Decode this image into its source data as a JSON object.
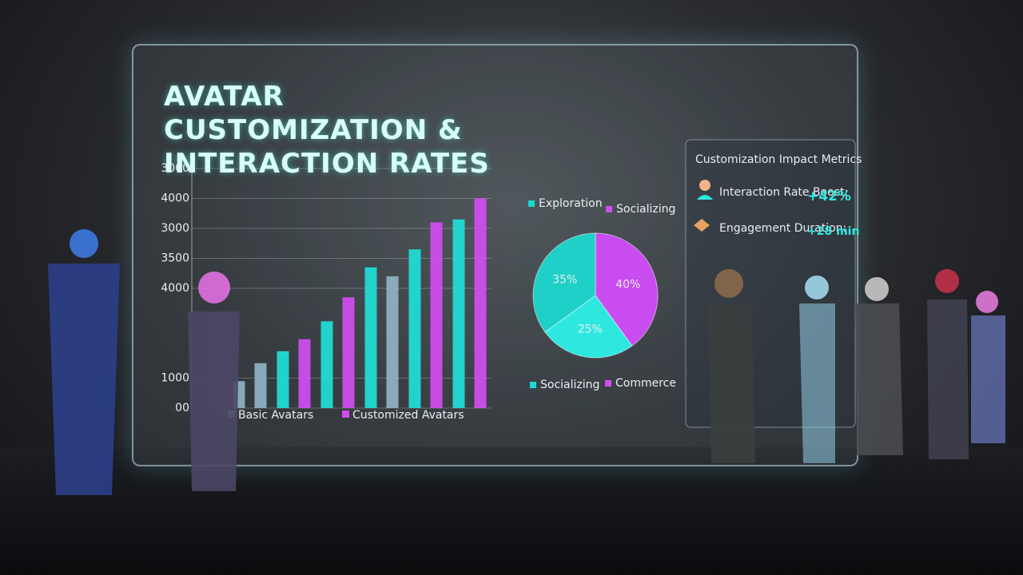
{
  "chart_data": [
    {
      "type": "bar",
      "title": "AVATAR CUSTOMIZATION & INTERACTION RATES",
      "categories": [
        null,
        null,
        null,
        null,
        null,
        null
      ],
      "series": [
        {
          "name": "Basic Avatars",
          "color": "#8fb3c4",
          "colors": [
            "#8fb3c4",
            "#1fe0d8",
            "#1fe0d8",
            "#1fe0d8",
            "#1fe0d8",
            "#1fe0d8"
          ],
          "values": [
            450,
            950,
            1450,
            2350,
            2650,
            3150
          ]
        },
        {
          "name": "Customized Avatars",
          "color": "#d24df2",
          "colors": [
            "#8fb3c4",
            "#d24df2",
            "#d24df2",
            "#8fb3c4",
            "#d24df2",
            "#d24df2"
          ],
          "values": [
            750,
            1150,
            1850,
            2200,
            3100,
            3500
          ]
        }
      ],
      "ylim": [
        0,
        4000
      ],
      "yticks": [
        {
          "value": 0,
          "label": "00"
        },
        {
          "value": 500,
          "label": "1000"
        },
        {
          "value": 2000,
          "label": "4000"
        },
        {
          "value": 2500,
          "label": "3500"
        },
        3000,
        {
          "value": 3500,
          "label": "4000"
        },
        {
          "value": 4000,
          "label": "3000"
        }
      ],
      "grid": true
    },
    {
      "type": "pie",
      "values": [
        40,
        25,
        35
      ],
      "value_labels": [
        "40%",
        "25%",
        "35%"
      ],
      "colors": [
        "#c94cf0",
        "#2ee8e0",
        "#1fd0c8"
      ],
      "legend": [
        {
          "name": "Exploration",
          "color": "#19d9d0"
        },
        {
          "name": "Socializing",
          "color": "#d24df2"
        },
        {
          "name": "Socializing",
          "color": "#19d9d0"
        },
        {
          "name": "Commerce",
          "color": "#d24df2"
        }
      ]
    }
  ],
  "metrics_panel": {
    "title": "Customization Impact Metrics",
    "rows": [
      {
        "label": "Interaction Rate Boost:",
        "value": "+42%"
      },
      {
        "label": "Engagement Duration:",
        "value": "+28 min"
      }
    ]
  }
}
